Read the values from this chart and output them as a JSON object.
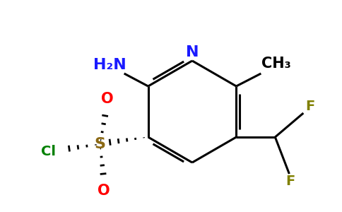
{
  "background_color": "#ffffff",
  "atom_colors": {
    "N": "#1a1aff",
    "NH2": "#1a1aff",
    "S": "#8B6914",
    "O": "#ff0000",
    "Cl": "#008000",
    "F": "#808000",
    "C": "#000000"
  },
  "bond_color": "#000000",
  "bond_lw": 2.2,
  "figsize": [
    4.84,
    3.0
  ],
  "dpi": 100
}
